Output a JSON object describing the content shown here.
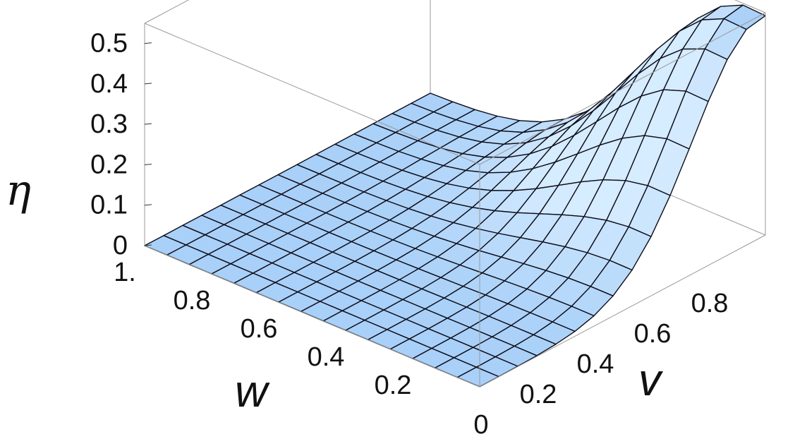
{
  "chart_data": {
    "type": "surface3d",
    "title": "",
    "xlabel": "v",
    "ylabel": "w",
    "zlabel": "η",
    "x_range": [
      0,
      1
    ],
    "y_range": [
      0,
      1
    ],
    "z_range": [
      0,
      0.55
    ],
    "x_ticks": [
      "0",
      "0.2",
      "0.4",
      "0.6",
      "0.8"
    ],
    "y_ticks": [
      "0.2",
      "0.4",
      "0.6",
      "0.8",
      "1."
    ],
    "z_ticks": [
      "0",
      "0.1",
      "0.2",
      "0.3",
      "0.4",
      "0.5"
    ],
    "surface": {
      "shape": "gaussian-like peak near the far corner (v≈0.95, w≈0.05), decaying toward zero elsewhere",
      "peak_value": 0.55,
      "mesh_divisions": 15,
      "x_samples": [
        0,
        0.2,
        0.4,
        0.6,
        0.8,
        1.0
      ],
      "y_samples": [
        0,
        0.2,
        0.4,
        0.6,
        0.8,
        1.0
      ],
      "z_values_by_w": [
        [
          0.01,
          0.03,
          0.1,
          0.26,
          0.45,
          0.55
        ],
        [
          0.01,
          0.03,
          0.09,
          0.23,
          0.4,
          0.48
        ],
        [
          0.01,
          0.02,
          0.06,
          0.15,
          0.26,
          0.31
        ],
        [
          0.0,
          0.01,
          0.03,
          0.07,
          0.12,
          0.15
        ],
        [
          0.0,
          0.0,
          0.01,
          0.02,
          0.04,
          0.05
        ],
        [
          0.0,
          0.0,
          0.0,
          0.01,
          0.01,
          0.01
        ]
      ]
    },
    "colors": {
      "surface_light": "#d6ecff",
      "surface_mid": "#a9d0f8",
      "surface_dark": "#6f8fe8",
      "mesh": "#0d0d1a",
      "box": "#9a9a9a"
    },
    "box": true,
    "grid": false,
    "legend": "none"
  }
}
